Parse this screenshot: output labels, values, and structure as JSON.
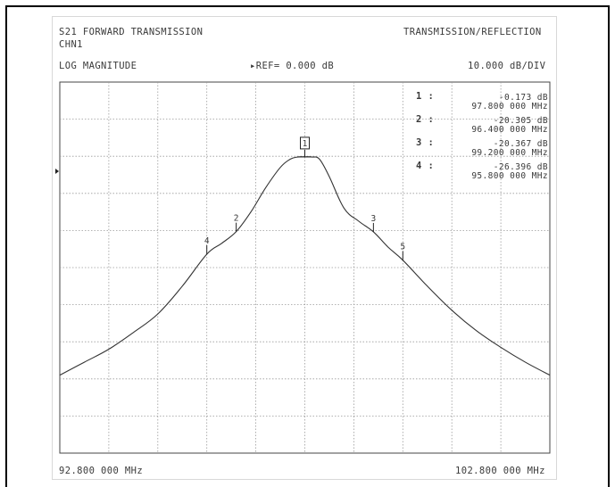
{
  "header": {
    "title": "S21 FORWARD TRANSMISSION",
    "channel": "CHN1",
    "mode": "TRANSMISSION/REFLECTION",
    "format": "LOG MAGNITUDE",
    "ref": "▸REF= 0.000 dB",
    "scale": "10.000 dB/DIV"
  },
  "footer": {
    "start": "92.800 000 MHz",
    "stop": "102.800 000 MHz"
  },
  "markers": [
    {
      "label": "1 :",
      "value": "-0.173 dB",
      "freq": "97.800 000 MHz"
    },
    {
      "label": "2 :",
      "value": "-20.305 dB",
      "freq": "96.400 000 MHz"
    },
    {
      "label": "3 :",
      "value": "-20.367 dB",
      "freq": "99.200 000 MHz"
    },
    {
      "label": "4 :",
      "value": "-26.396 dB",
      "freq": "95.800 000 MHz"
    }
  ],
  "chart_data": {
    "type": "line",
    "title": "S21 FORWARD TRANSMISSION",
    "xlabel": "",
    "ylabel": "",
    "xlim": [
      92.8,
      102.8
    ],
    "ylim": [
      -80,
      20
    ],
    "ref_level_db": 0,
    "db_per_div": 10,
    "grid": true,
    "x_divisions": 10,
    "y_divisions": 10,
    "series": [
      {
        "x": [
          92.8,
          93.3,
          93.8,
          94.3,
          94.8,
          95.3,
          95.8,
          96.1,
          96.4,
          96.7,
          97.0,
          97.3,
          97.5,
          97.65,
          97.8,
          97.95,
          98.1,
          98.3,
          98.6,
          98.9,
          99.2,
          99.5,
          99.8,
          100.3,
          100.8,
          101.3,
          101.8,
          102.3,
          102.8
        ],
        "y": [
          -59,
          -55.5,
          -52,
          -47.5,
          -42.5,
          -35,
          -26.4,
          -23.5,
          -20.3,
          -15,
          -8.5,
          -3,
          -0.8,
          -0.2,
          -0.17,
          -0.2,
          -0.8,
          -5.5,
          -14,
          -17.5,
          -20.37,
          -24.5,
          -28,
          -35,
          -41.5,
          -47,
          -51.5,
          -55.5,
          -59
        ]
      }
    ],
    "marker_points": [
      {
        "label": "1",
        "x": 97.8,
        "y": -0.17
      },
      {
        "label": "2",
        "x": 96.4,
        "y": -20.3
      },
      {
        "label": "3",
        "x": 99.2,
        "y": -20.37
      },
      {
        "label": "4",
        "x": 95.8,
        "y": -26.4
      },
      {
        "label": "5",
        "x": 99.8,
        "y": -28
      }
    ]
  }
}
